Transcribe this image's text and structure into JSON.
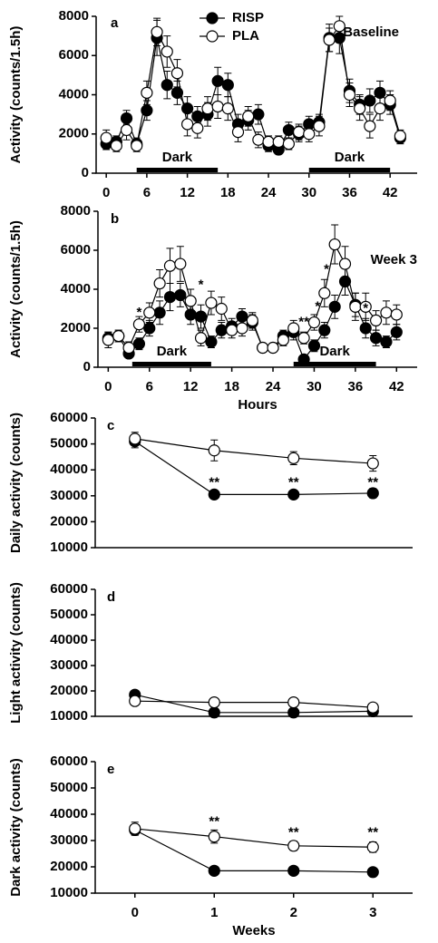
{
  "chart_data": [
    {
      "type": "line",
      "panel_label": "a",
      "subtitle": "Baseline",
      "ylabel": "Activity (counts/1.5h)",
      "legend": "top",
      "x": [
        0,
        1.5,
        3,
        4.5,
        6,
        7.5,
        9,
        10.5,
        12,
        13.5,
        15,
        16.5,
        18,
        19.5,
        21,
        22.5,
        24,
        25.5,
        27,
        28.5,
        30,
        31.5,
        33,
        34.5,
        36,
        37.5,
        39,
        40.5,
        42,
        43.5
      ],
      "xlim": [
        -1.5,
        46
      ],
      "xticks": [
        0,
        6,
        12,
        18,
        24,
        30,
        36,
        42
      ],
      "ylim": [
        0,
        8000
      ],
      "yticks": [
        0,
        2000,
        4000,
        6000,
        8000
      ],
      "dark_periods": [
        {
          "x0": 4.5,
          "x1": 16.5,
          "label": "Dark"
        },
        {
          "x0": 30,
          "x1": 42,
          "label": "Dark"
        }
      ],
      "series": [
        {
          "name": "RISP",
          "color": "#000000",
          "marker_fill": "#000000",
          "values": [
            1500,
            1600,
            2800,
            1500,
            3200,
            6900,
            4500,
            4100,
            3300,
            2900,
            3000,
            4700,
            4500,
            2500,
            2700,
            3000,
            1400,
            1200,
            2200,
            2000,
            2500,
            2600,
            6900,
            6900,
            4200,
            3500,
            3700,
            4100,
            3500,
            1800
          ],
          "errors": [
            300,
            300,
            400,
            300,
            500,
            900,
            700,
            600,
            600,
            500,
            600,
            700,
            600,
            500,
            500,
            500,
            300,
            200,
            400,
            400,
            400,
            400,
            700,
            800,
            600,
            500,
            600,
            600,
            500,
            300
          ]
        },
        {
          "name": "PLA",
          "color": "#000000",
          "marker_fill": "#ffffff",
          "values": [
            1800,
            1400,
            2200,
            1400,
            4100,
            7200,
            6200,
            5100,
            2500,
            2300,
            3300,
            3400,
            3300,
            2100,
            2900,
            1700,
            1600,
            1600,
            1500,
            2100,
            2000,
            2400,
            6800,
            7500,
            4000,
            3300,
            2400,
            3300,
            3700,
            1900
          ],
          "errors": [
            400,
            300,
            500,
            300,
            600,
            700,
            800,
            700,
            600,
            500,
            600,
            600,
            600,
            500,
            500,
            400,
            300,
            300,
            300,
            400,
            400,
            500,
            600,
            500,
            600,
            600,
            600,
            600,
            500,
            300
          ]
        }
      ]
    },
    {
      "type": "line",
      "panel_label": "b",
      "subtitle": "Week 3",
      "ylabel": "Activity (counts/1.5h)",
      "xlabel": "Hours",
      "x": [
        0,
        1.5,
        3,
        4.5,
        6,
        7.5,
        9,
        10.5,
        12,
        13.5,
        15,
        16.5,
        18,
        19.5,
        21,
        22.5,
        24,
        25.5,
        27,
        28.5,
        30,
        31.5,
        33,
        34.5,
        36,
        37.5,
        39,
        40.5,
        42
      ],
      "xlim": [
        -1.5,
        45
      ],
      "xticks": [
        0,
        6,
        12,
        18,
        24,
        30,
        36,
        42
      ],
      "ylim": [
        0,
        8000
      ],
      "yticks": [
        0,
        2000,
        4000,
        6000,
        8000
      ],
      "dark_periods": [
        {
          "x0": 3.5,
          "x1": 15,
          "label": "Dark"
        },
        {
          "x0": 27,
          "x1": 39,
          "label": "Dark"
        }
      ],
      "annotations": [
        {
          "x": 4.5,
          "y": 2800,
          "text": "*"
        },
        {
          "x": 13.5,
          "y": 4200,
          "text": "*"
        },
        {
          "x": 28.5,
          "y": 2300,
          "text": "**"
        },
        {
          "x": 30.5,
          "y": 3100,
          "text": "*"
        },
        {
          "x": 31.8,
          "y": 5000,
          "text": "*"
        },
        {
          "x": 37.5,
          "y": 3000,
          "text": "*"
        }
      ],
      "series": [
        {
          "color": "#000000",
          "marker_fill": "#000000",
          "values": [
            1500,
            1600,
            700,
            1200,
            2000,
            2800,
            3600,
            3700,
            2700,
            2600,
            1300,
            1900,
            2100,
            2600,
            2300,
            1000,
            1000,
            1600,
            1800,
            400,
            1100,
            1900,
            3100,
            4400,
            3200,
            2000,
            1500,
            1300,
            1800
          ],
          "errors": [
            300,
            300,
            200,
            300,
            400,
            600,
            700,
            600,
            500,
            600,
            300,
            400,
            400,
            400,
            400,
            200,
            200,
            300,
            400,
            100,
            300,
            400,
            600,
            700,
            600,
            500,
            400,
            300,
            400
          ]
        },
        {
          "color": "#000000",
          "marker_fill": "#ffffff",
          "values": [
            1400,
            1600,
            1000,
            2200,
            2800,
            4300,
            5200,
            5300,
            3400,
            1500,
            3300,
            3000,
            1900,
            2000,
            2400,
            1000,
            1000,
            1400,
            2000,
            1500,
            2300,
            3800,
            6300,
            5300,
            3100,
            3100,
            2400,
            2800,
            2700
          ],
          "errors": [
            400,
            300,
            300,
            400,
            500,
            700,
            900,
            900,
            600,
            400,
            600,
            600,
            400,
            400,
            400,
            200,
            200,
            300,
            400,
            300,
            400,
            700,
            1000,
            900,
            700,
            700,
            500,
            600,
            500
          ]
        }
      ]
    },
    {
      "type": "line",
      "panel_label": "c",
      "ylabel": "Daily activity (counts)",
      "x": [
        0,
        1,
        2,
        3
      ],
      "xlim": [
        -0.5,
        3.5
      ],
      "ylim": [
        10000,
        60000
      ],
      "yticks": [
        10000,
        20000,
        30000,
        40000,
        50000,
        60000
      ],
      "annotations": [
        {
          "x": 1,
          "y": 35000,
          "text": "**"
        },
        {
          "x": 2,
          "y": 35000,
          "text": "**"
        },
        {
          "x": 3,
          "y": 35000,
          "text": "**"
        }
      ],
      "series": [
        {
          "color": "#000000",
          "marker_fill": "#000000",
          "values": [
            51000,
            30500,
            30500,
            31000
          ],
          "errors": [
            2500,
            1500,
            1500,
            1800
          ]
        },
        {
          "color": "#000000",
          "marker_fill": "#ffffff",
          "values": [
            52000,
            47500,
            44500,
            42500
          ],
          "errors": [
            2500,
            4000,
            2500,
            3000
          ]
        }
      ]
    },
    {
      "type": "line",
      "panel_label": "d",
      "ylabel": "Light activity (counts)",
      "x": [
        0,
        1,
        2,
        3
      ],
      "xlim": [
        -0.5,
        3.5
      ],
      "ylim": [
        10000,
        60000
      ],
      "yticks": [
        10000,
        20000,
        30000,
        40000,
        50000,
        60000
      ],
      "series": [
        {
          "color": "#000000",
          "marker_fill": "#000000",
          "values": [
            18500,
            11500,
            11500,
            12000
          ],
          "errors": [
            800,
            600,
            600,
            700
          ]
        },
        {
          "color": "#000000",
          "marker_fill": "#ffffff",
          "values": [
            16000,
            15500,
            15500,
            13500
          ],
          "errors": [
            900,
            800,
            800,
            800
          ]
        }
      ]
    },
    {
      "type": "line",
      "panel_label": "e",
      "ylabel": "Dark activity (counts)",
      "xlabel": "Weeks",
      "x": [
        0,
        1,
        2,
        3
      ],
      "xlim": [
        -0.5,
        3.5
      ],
      "xticks": [
        0,
        1,
        2,
        3
      ],
      "ylim": [
        10000,
        60000
      ],
      "yticks": [
        10000,
        20000,
        30000,
        40000,
        50000,
        60000
      ],
      "annotations": [
        {
          "x": 1,
          "y": 37000,
          "text": "**"
        },
        {
          "x": 2,
          "y": 33000,
          "text": "**"
        },
        {
          "x": 3,
          "y": 33000,
          "text": "**"
        }
      ],
      "series": [
        {
          "color": "#000000",
          "marker_fill": "#000000",
          "values": [
            34000,
            18500,
            18500,
            18000
          ],
          "errors": [
            1500,
            800,
            800,
            800
          ]
        },
        {
          "color": "#000000",
          "marker_fill": "#ffffff",
          "values": [
            34500,
            31500,
            28000,
            27500
          ],
          "errors": [
            2500,
            2500,
            1800,
            2000
          ]
        }
      ]
    }
  ]
}
